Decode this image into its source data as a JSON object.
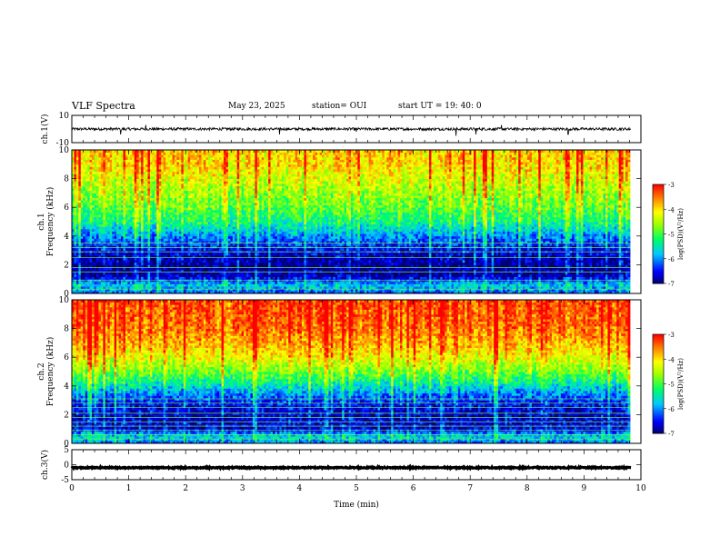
{
  "header": {
    "title": "VLF Spectra",
    "date": "May 23, 2025",
    "station": "station= OUI",
    "start": "start  UT =   19: 40: 0"
  },
  "colorbar": {
    "label": "log(PSD)(V²/Hz)",
    "ticks": [
      "-3",
      "-4",
      "-5",
      "-6",
      "-7"
    ],
    "colors": [
      "#ff0000",
      "#ffff00",
      "#00ff00",
      "#00ffff",
      "#0000ff",
      "#000080"
    ]
  },
  "chart_data": [
    {
      "type": "line",
      "panel": "ch1-waveform",
      "ylabel": "ch.1(V)",
      "ylim": [
        -10,
        10
      ],
      "yticks": [
        "10",
        "-10"
      ],
      "xlim": [
        0,
        10
      ],
      "baseline": 0,
      "noise_amplitude": 1,
      "spikes": [
        [
          0.86,
          -4
        ],
        [
          1.3,
          3
        ],
        [
          3.65,
          -4
        ],
        [
          5.0,
          -2
        ],
        [
          6.75,
          -5
        ],
        [
          7.1,
          -4
        ],
        [
          7.55,
          3
        ],
        [
          8.72,
          -4
        ]
      ]
    },
    {
      "type": "heatmap",
      "panel": "ch1-spectrogram",
      "ylabel": "ch.1 Frequency (kHz)",
      "ylim": [
        0,
        10
      ],
      "yticks": [
        "0",
        "2",
        "4",
        "6",
        "8",
        "10"
      ],
      "xlim": [
        0,
        9.83
      ],
      "zlim": [
        -7,
        -3
      ],
      "zlabel": "log(PSD)(V²/Hz)",
      "profile": [
        [
          0,
          -6.2
        ],
        [
          0.6,
          -5.7
        ],
        [
          1.2,
          -6.8
        ],
        [
          2,
          -6.9
        ],
        [
          3,
          -6.6
        ],
        [
          4,
          -6.0
        ],
        [
          5,
          -5.3
        ],
        [
          6,
          -4.9
        ],
        [
          7,
          -4.6
        ],
        [
          8,
          -4.3
        ],
        [
          9,
          -4.0
        ],
        [
          10,
          -3.9
        ]
      ],
      "lines_khz": [
        0.3,
        0.9,
        1.5,
        1.8,
        2.5,
        2.9,
        3.2,
        3.5
      ]
    },
    {
      "type": "heatmap",
      "panel": "ch2-spectrogram",
      "ylabel": "ch.2 Frequency (kHz)",
      "ylim": [
        0,
        10
      ],
      "yticks": [
        "0",
        "2",
        "4",
        "6",
        "8",
        "10"
      ],
      "xlim": [
        0,
        9.83
      ],
      "zlim": [
        -7,
        -3
      ],
      "zlabel": "log(PSD)(V²/Hz)",
      "profile": [
        [
          0,
          -6.2
        ],
        [
          0.5,
          -5.6
        ],
        [
          1,
          -6.6
        ],
        [
          2,
          -6.7
        ],
        [
          3,
          -6.4
        ],
        [
          4,
          -5.6
        ],
        [
          5,
          -4.8
        ],
        [
          6,
          -4.2
        ],
        [
          7,
          -3.8
        ],
        [
          8,
          -3.5
        ],
        [
          9,
          -3.4
        ],
        [
          10,
          -3.3
        ]
      ],
      "lines_khz": [
        0.3,
        0.6,
        0.9,
        1.2,
        1.5,
        1.8,
        2.1,
        2.5,
        2.8,
        3.1
      ]
    },
    {
      "type": "line",
      "panel": "ch3-waveform",
      "ylabel": "ch.3(V)",
      "ylim": [
        -5,
        5
      ],
      "yticks": [
        "5",
        "0",
        "-5"
      ],
      "xlim": [
        0,
        10
      ],
      "baseline": -1,
      "noise_amplitude": 0.2,
      "spikes": []
    }
  ],
  "xaxis": {
    "label": "Time (min)",
    "ticks": [
      "0",
      "1",
      "2",
      "3",
      "4",
      "5",
      "6",
      "7",
      "8",
      "9",
      "10"
    ]
  }
}
